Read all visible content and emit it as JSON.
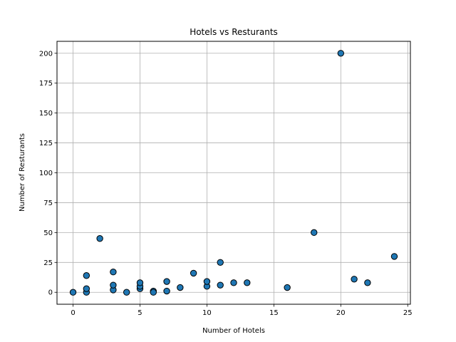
{
  "chart_data": {
    "type": "scatter",
    "title": "Hotels vs Resturants",
    "xlabel": "Number of Hotels",
    "ylabel": "Number of Resturants",
    "xlim": [
      -1.2,
      25.2
    ],
    "ylim": [
      -10,
      210
    ],
    "xticks": [
      0,
      5,
      10,
      15,
      20,
      25
    ],
    "yticks": [
      0,
      25,
      50,
      75,
      100,
      125,
      150,
      175,
      200
    ],
    "grid": true,
    "marker_fill": "#1f77b4",
    "marker_edge": "#000000",
    "points": [
      {
        "x": 0,
        "y": 0
      },
      {
        "x": 1,
        "y": 0
      },
      {
        "x": 1,
        "y": 3
      },
      {
        "x": 1,
        "y": 14
      },
      {
        "x": 2,
        "y": 45
      },
      {
        "x": 3,
        "y": 2
      },
      {
        "x": 3,
        "y": 6
      },
      {
        "x": 3,
        "y": 17
      },
      {
        "x": 4,
        "y": 0
      },
      {
        "x": 5,
        "y": 3
      },
      {
        "x": 5,
        "y": 5
      },
      {
        "x": 5,
        "y": 8
      },
      {
        "x": 6,
        "y": 1
      },
      {
        "x": 6,
        "y": 0
      },
      {
        "x": 7,
        "y": 1
      },
      {
        "x": 7,
        "y": 9
      },
      {
        "x": 8,
        "y": 4
      },
      {
        "x": 9,
        "y": 16
      },
      {
        "x": 10,
        "y": 5
      },
      {
        "x": 10,
        "y": 9
      },
      {
        "x": 11,
        "y": 6
      },
      {
        "x": 11,
        "y": 25
      },
      {
        "x": 12,
        "y": 8
      },
      {
        "x": 13,
        "y": 8
      },
      {
        "x": 16,
        "y": 4
      },
      {
        "x": 18,
        "y": 50
      },
      {
        "x": 20,
        "y": 200
      },
      {
        "x": 21,
        "y": 11
      },
      {
        "x": 22,
        "y": 8
      },
      {
        "x": 24,
        "y": 30
      }
    ]
  }
}
